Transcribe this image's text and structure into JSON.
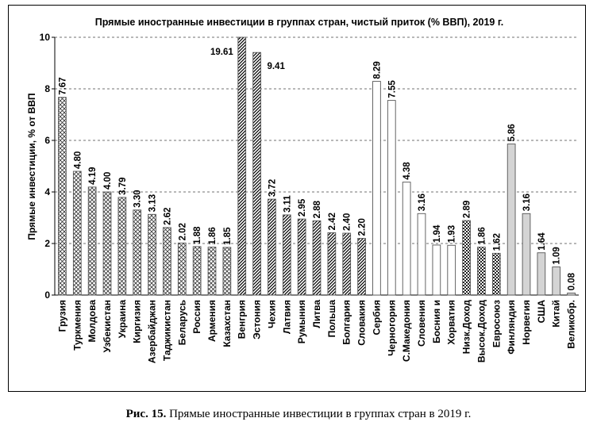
{
  "caption": {
    "label": "Рис. 15.",
    "text": "Прямые иностранные инвестиции в группах стран в 2019 г."
  },
  "chart_data": {
    "type": "bar",
    "title": "Прямые иностранные инвестиции в группах стран, чистый приток (% ВВП), 2019 г.",
    "xlabel": "",
    "ylabel": "Прямые инвестиции, % от ВВП",
    "ylim": [
      0,
      10
    ],
    "yticks": [
      0,
      2,
      4,
      6,
      8,
      10
    ],
    "grid": "horizontal-dashed",
    "categories": [
      "Грузия",
      "Туркмения",
      "Молдова",
      "Узбекистан",
      "Украина",
      "Киргизия",
      "Азербайджан",
      "Таджикистан",
      "Беларусь",
      "Россия",
      "Армения",
      "Казахстан",
      "Венгрия",
      "Эстония",
      "Чехия",
      "Латвия",
      "Румыния",
      "Литва",
      "Польша",
      "Болгария",
      "Словакия",
      "Сербия",
      "Черногория",
      "С.Македония",
      "Словения",
      "Босния и",
      "Хорватия",
      "Низк.Доход",
      "Высок.Доход",
      "Евросоюз",
      "Финляндия",
      "Норвегия",
      "США",
      "Китай",
      "Великобр."
    ],
    "values": [
      7.67,
      4.8,
      4.19,
      4.0,
      3.79,
      3.3,
      3.13,
      2.62,
      2.02,
      1.88,
      1.86,
      1.85,
      19.61,
      9.41,
      3.72,
      3.11,
      2.95,
      2.88,
      2.42,
      2.4,
      2.2,
      8.29,
      7.55,
      4.38,
      3.16,
      1.94,
      1.93,
      2.89,
      1.86,
      1.62,
      5.86,
      3.16,
      1.64,
      1.09,
      0.08
    ],
    "value_labels": [
      "7.67",
      "4.80",
      "4.19",
      "4.00",
      "3.79",
      "3.30",
      "3.13",
      "2.62",
      "2.02",
      "1.88",
      "1.86",
      "1.85",
      "19.61",
      "9.41",
      "3.72",
      "3.11",
      "2.95",
      "2.88",
      "2.42",
      "2.40",
      "2.20",
      "8.29",
      "7.55",
      "4.38",
      "3.16",
      "1.94",
      "1.93",
      "2.89",
      "1.86",
      "1.62",
      "5.86",
      "3.16",
      "1.64",
      "1.09",
      "0.08"
    ],
    "styles": [
      "crosshatch",
      "crosshatch",
      "crosshatch",
      "crosshatch",
      "crosshatch",
      "crosshatch",
      "crosshatch",
      "crosshatch",
      "crosshatch",
      "crosshatch",
      "crosshatch",
      "crosshatch",
      "diagonal",
      "diagonal",
      "diagonal",
      "diagonal",
      "diagonal",
      "diagonal",
      "diagonal",
      "diagonal",
      "diagonal",
      "white",
      "white",
      "white",
      "white",
      "white",
      "white",
      "checker",
      "checker",
      "checker",
      "gray",
      "gray",
      "gray",
      "gray",
      "gray"
    ]
  }
}
